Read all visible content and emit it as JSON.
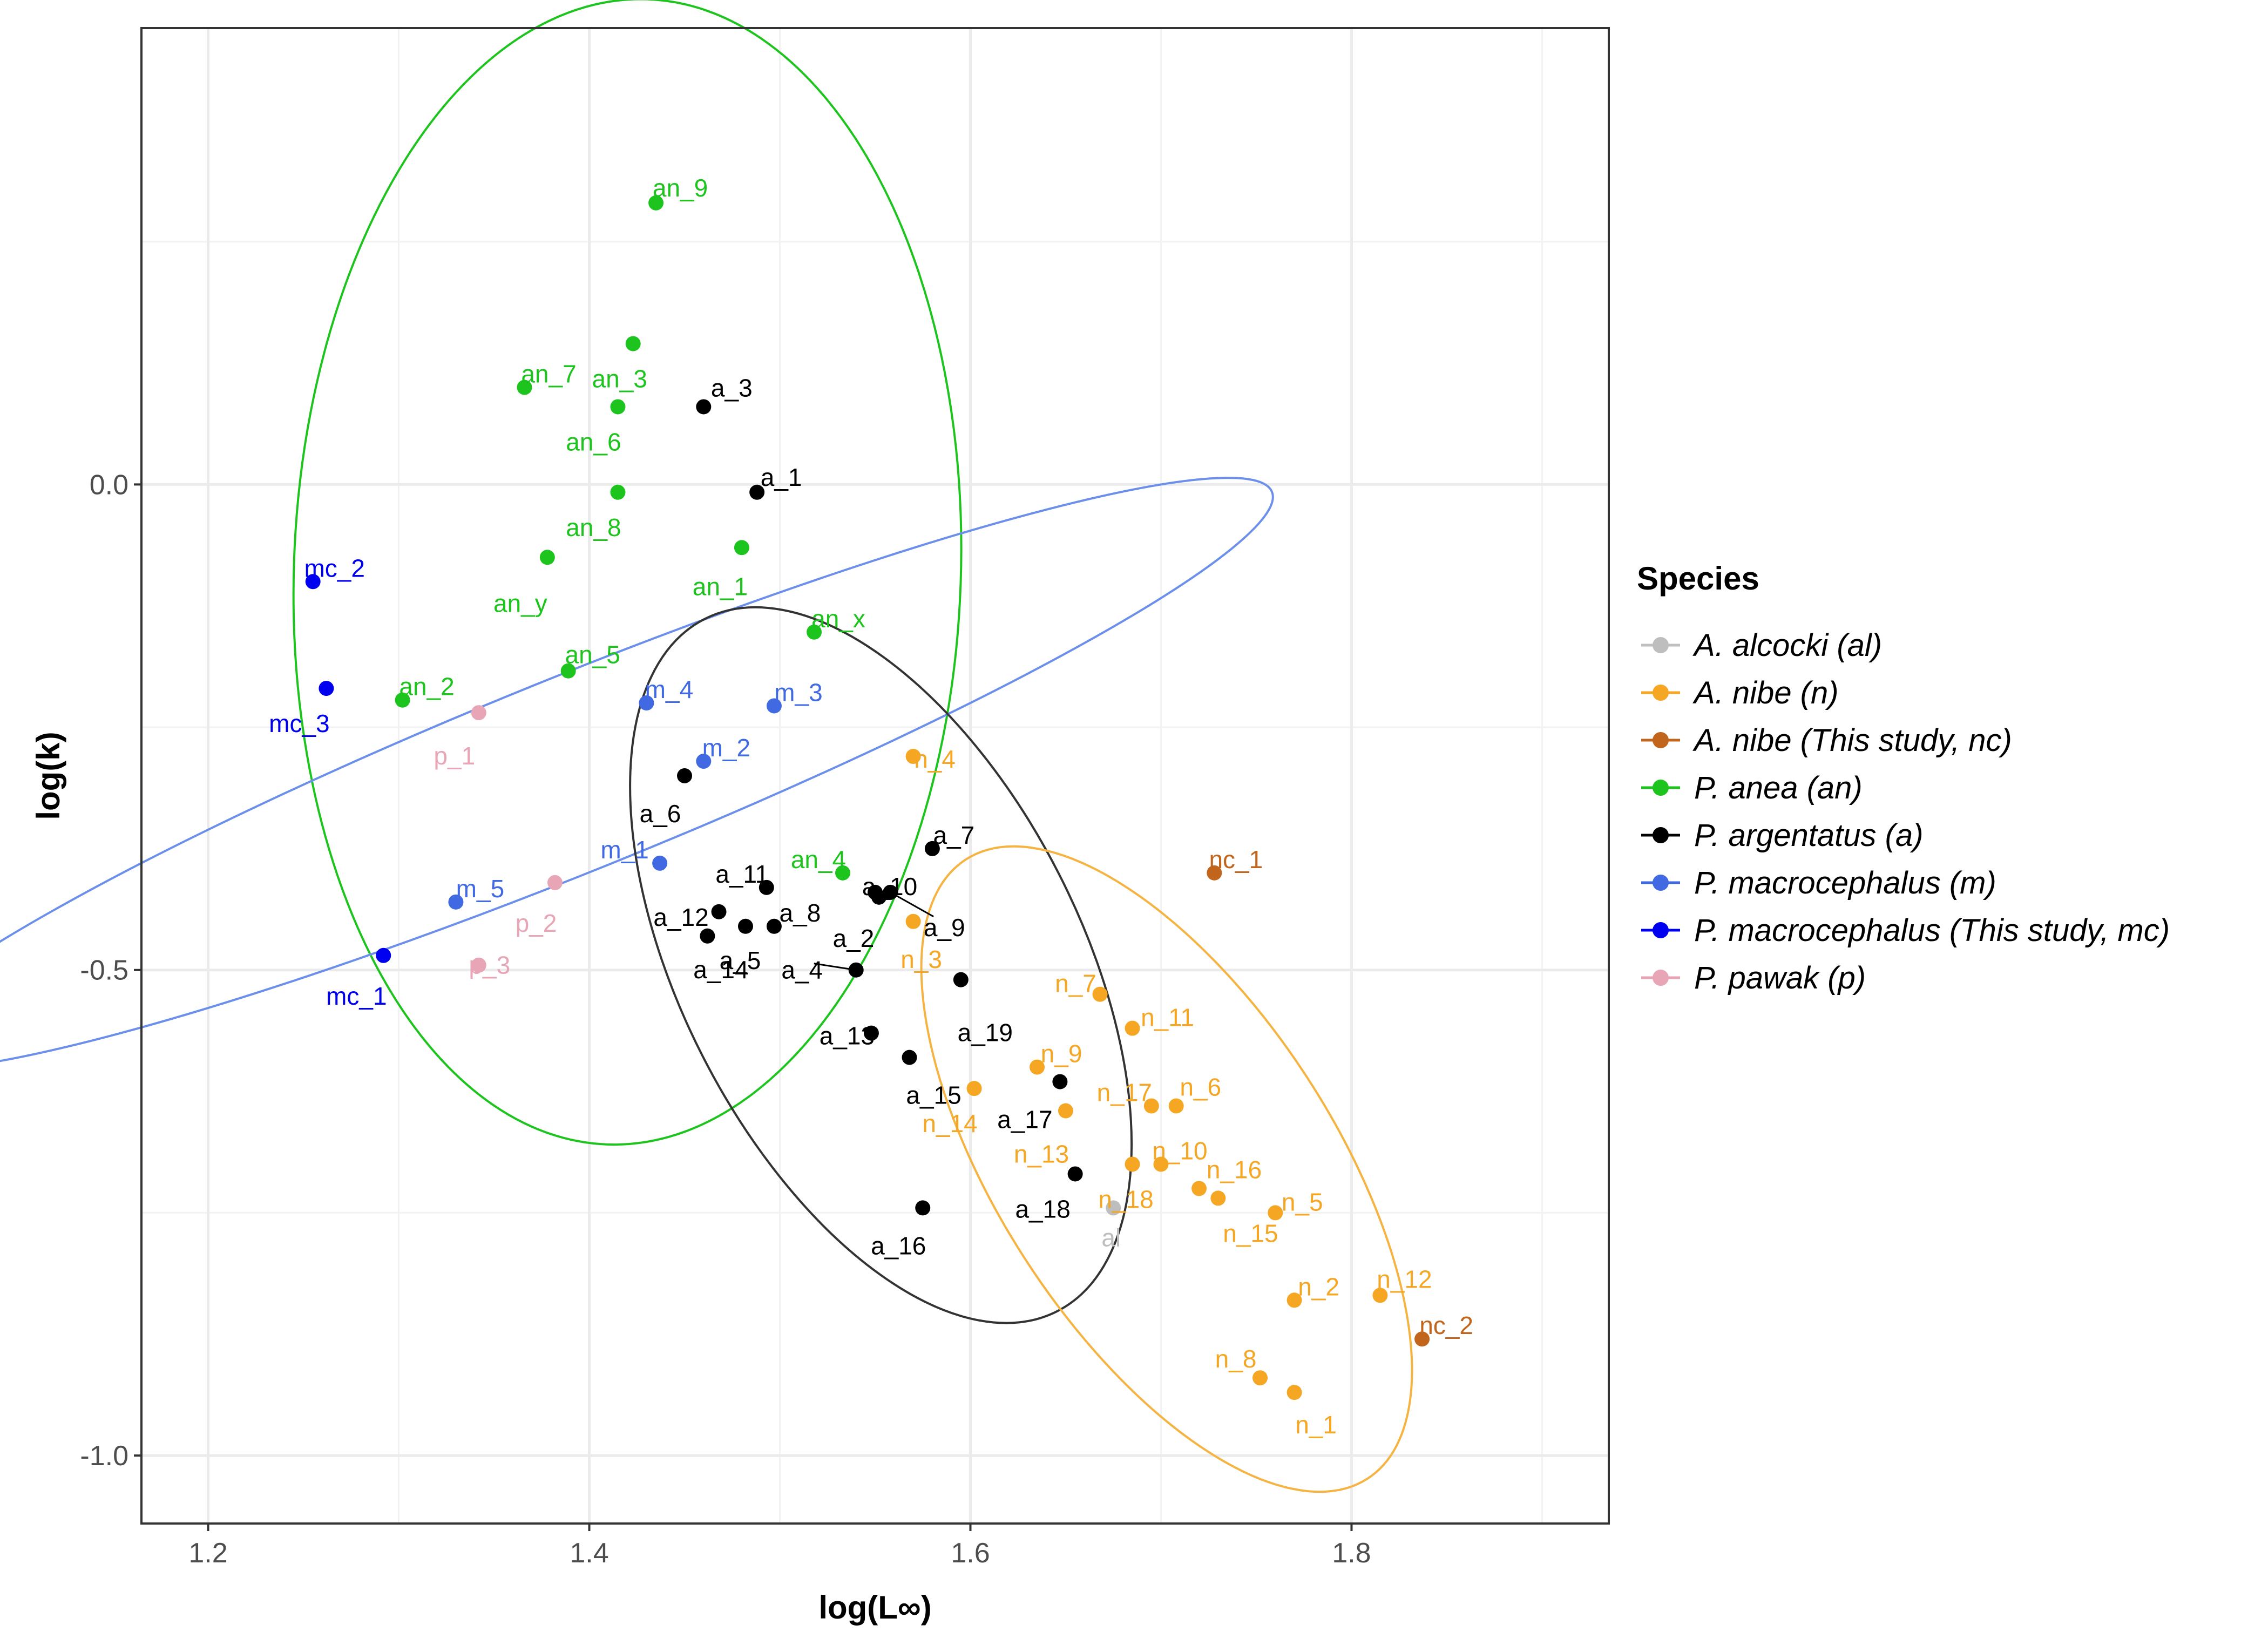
{
  "chart_data": {
    "type": "scatter",
    "xlabel": "log(L∞)",
    "ylabel": "log(k)",
    "xlim": [
      1.165,
      1.935
    ],
    "ylim": [
      -1.07,
      0.47
    ],
    "x_ticks": [
      1.2,
      1.4,
      1.6,
      1.8
    ],
    "x_tick_labels": [
      "1.2",
      "1.4",
      "1.6",
      "1.8"
    ],
    "y_ticks": [
      -1.0,
      -0.5,
      0.0
    ],
    "y_tick_labels": [
      "-1.0",
      "-0.5",
      "0.0"
    ],
    "grid": true,
    "legend": {
      "title": "Species",
      "placement": "right",
      "entries": [
        {
          "label": "A. alcocki (al)",
          "color": "#bebebe"
        },
        {
          "label": "A. nibe (n)",
          "color": "#f5a623"
        },
        {
          "label": "A. nibe (This study, nc)",
          "color": "#c0651b"
        },
        {
          "label": "P. anea (an)",
          "color": "#1ec41e"
        },
        {
          "label": "P. argentatus (a)",
          "color": "#000000"
        },
        {
          "label": "P. macrocephalus (m)",
          "color": "#4169e1"
        },
        {
          "label": "P. macrocephalus (This study, mc)",
          "color": "#0000f0"
        },
        {
          "label": "P. pawak (p)",
          "color": "#e8a5b5"
        }
      ]
    },
    "series": [
      {
        "name": "A. alcocki (al)",
        "color": "#bebebe",
        "points": [
          {
            "label": "al",
            "x": 1.675,
            "y": -0.745
          }
        ]
      },
      {
        "name": "A. nibe (n)",
        "color": "#f5a623",
        "points": [
          {
            "label": "n_1",
            "x": 1.77,
            "y": -0.935
          },
          {
            "label": "n_2",
            "x": 1.77,
            "y": -0.84
          },
          {
            "label": "n_3",
            "x": 1.57,
            "y": -0.45
          },
          {
            "label": "n_4",
            "x": 1.57,
            "y": -0.28
          },
          {
            "label": "n_5",
            "x": 1.76,
            "y": -0.75
          },
          {
            "label": "n_6",
            "x": 1.708,
            "y": -0.64
          },
          {
            "label": "n_7",
            "x": 1.668,
            "y": -0.525
          },
          {
            "label": "n_8",
            "x": 1.752,
            "y": -0.92
          },
          {
            "label": "n_9",
            "x": 1.635,
            "y": -0.6
          },
          {
            "label": "n_10",
            "x": 1.7,
            "y": -0.7
          },
          {
            "label": "n_11",
            "x": 1.685,
            "y": -0.56
          },
          {
            "label": "n_12",
            "x": 1.815,
            "y": -0.835
          },
          {
            "label": "n_13",
            "x": 1.65,
            "y": -0.645
          },
          {
            "label": "n_14",
            "x": 1.602,
            "y": -0.622
          },
          {
            "label": "n_15",
            "x": 1.73,
            "y": -0.735
          },
          {
            "label": "n_16",
            "x": 1.72,
            "y": -0.725
          },
          {
            "label": "n_17",
            "x": 1.695,
            "y": -0.64
          },
          {
            "label": "n_18",
            "x": 1.685,
            "y": -0.7
          }
        ]
      },
      {
        "name": "A. nibe (This study, nc)",
        "color": "#c0651b",
        "points": [
          {
            "label": "nc_1",
            "x": 1.728,
            "y": -0.4
          },
          {
            "label": "nc_2",
            "x": 1.837,
            "y": -0.88
          }
        ]
      },
      {
        "name": "P. anea (an)",
        "color": "#1ec41e",
        "points": [
          {
            "label": "an_9",
            "x": 1.435,
            "y": 0.29
          },
          {
            "label": "an_7",
            "x": 1.366,
            "y": 0.1
          },
          {
            "label": "an_3",
            "x": 1.423,
            "y": 0.145
          },
          {
            "label": "an_6",
            "x": 1.415,
            "y": 0.08
          },
          {
            "label": "an_8",
            "x": 1.415,
            "y": -0.008
          },
          {
            "label": "an_y",
            "x": 1.378,
            "y": -0.075
          },
          {
            "label": "an_1",
            "x": 1.48,
            "y": -0.065
          },
          {
            "label": "an_x",
            "x": 1.518,
            "y": -0.152
          },
          {
            "label": "an_5",
            "x": 1.389,
            "y": -0.192
          },
          {
            "label": "an_2",
            "x": 1.302,
            "y": -0.222
          },
          {
            "label": "an_4",
            "x": 1.533,
            "y": -0.4
          }
        ]
      },
      {
        "name": "P. argentatus (a)",
        "color": "#000000",
        "points": [
          {
            "label": "a_1",
            "x": 1.488,
            "y": -0.008
          },
          {
            "label": "a_2",
            "x": 1.55,
            "y": -0.42
          },
          {
            "label": "a_3",
            "x": 1.46,
            "y": 0.08
          },
          {
            "label": "a_4",
            "x": 1.54,
            "y": -0.5
          },
          {
            "label": "a_5",
            "x": 1.482,
            "y": -0.455
          },
          {
            "label": "a_6",
            "x": 1.45,
            "y": -0.3
          },
          {
            "label": "a_7",
            "x": 1.58,
            "y": -0.375
          },
          {
            "label": "a_8",
            "x": 1.497,
            "y": -0.455
          },
          {
            "label": "a_9",
            "x": 1.558,
            "y": -0.42
          },
          {
            "label": "a_10",
            "x": 1.552,
            "y": -0.425
          },
          {
            "label": "a_11",
            "x": 1.493,
            "y": -0.415
          },
          {
            "label": "a_12",
            "x": 1.468,
            "y": -0.44
          },
          {
            "label": "a_13",
            "x": 1.548,
            "y": -0.565
          },
          {
            "label": "a_14",
            "x": 1.462,
            "y": -0.465
          },
          {
            "label": "a_15",
            "x": 1.568,
            "y": -0.59
          },
          {
            "label": "a_16",
            "x": 1.575,
            "y": -0.745
          },
          {
            "label": "a_17",
            "x": 1.647,
            "y": -0.615
          },
          {
            "label": "a_18",
            "x": 1.655,
            "y": -0.71
          },
          {
            "label": "a_19",
            "x": 1.595,
            "y": -0.51
          }
        ]
      },
      {
        "name": "P. macrocephalus (m)",
        "color": "#4169e1",
        "points": [
          {
            "label": "m_1",
            "x": 1.437,
            "y": -0.39
          },
          {
            "label": "m_2",
            "x": 1.46,
            "y": -0.285
          },
          {
            "label": "m_3",
            "x": 1.497,
            "y": -0.228
          },
          {
            "label": "m_4",
            "x": 1.43,
            "y": -0.225
          },
          {
            "label": "m_5",
            "x": 1.33,
            "y": -0.43
          }
        ]
      },
      {
        "name": "P. macrocephalus (This study, mc)",
        "color": "#0000f0",
        "points": [
          {
            "label": "mc_1",
            "x": 1.292,
            "y": -0.485
          },
          {
            "label": "mc_2",
            "x": 1.255,
            "y": -0.1
          },
          {
            "label": "mc_3",
            "x": 1.262,
            "y": -0.21
          }
        ]
      },
      {
        "name": "P. pawak (p)",
        "color": "#e8a5b5",
        "points": [
          {
            "label": "p_1",
            "x": 1.342,
            "y": -0.235
          },
          {
            "label": "p_2",
            "x": 1.382,
            "y": -0.41
          },
          {
            "label": "p_3",
            "x": 1.342,
            "y": -0.495
          }
        ]
      }
    ],
    "ellipses": [
      {
        "series": "P. anea (an)",
        "color": "#1ec41e",
        "cx": 1.42,
        "cy": -0.09,
        "rx": 0.175,
        "ry": 0.59,
        "angle_deg": 2
      },
      {
        "series": "P. macrocephalus (m)",
        "color": "#6b8fea",
        "cx": 1.392,
        "cy": -0.298,
        "rx": 0.395,
        "ry": 0.1,
        "angle_deg": -22
      },
      {
        "series": "P. argentatus (a)",
        "color": "#333333",
        "cx": 1.553,
        "cy": -0.495,
        "rx": 0.105,
        "ry": 0.4,
        "angle_deg": -27
      },
      {
        "series": "A. nibe (n)",
        "color": "#f5b342",
        "cx": 1.703,
        "cy": -0.705,
        "rx": 0.088,
        "ry": 0.38,
        "angle_deg": -33
      }
    ],
    "label_offsets_note": "label anchor positions relative to points are layout"
  }
}
